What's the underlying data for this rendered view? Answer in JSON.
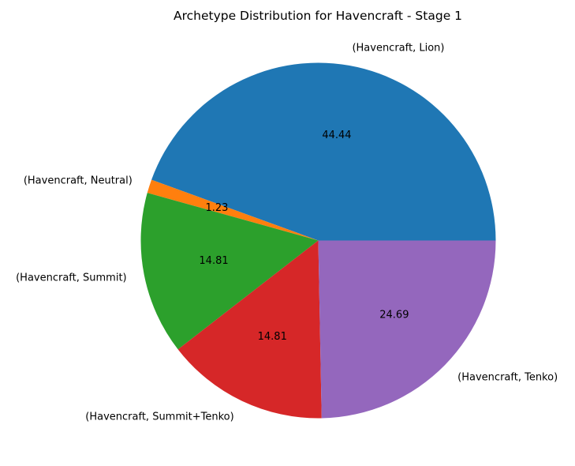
{
  "chart_data": {
    "type": "pie",
    "title": "Archetype Distribution for Havencraft - Stage 1",
    "slices": [
      {
        "label": "(Havencraft, Lion)",
        "value": 44.44,
        "pct_label": "44.44",
        "color": "#1f77b4"
      },
      {
        "label": "(Havencraft, Neutral)",
        "value": 1.23,
        "pct_label": "1.23",
        "color": "#ff7f0e"
      },
      {
        "label": "(Havencraft, Summit)",
        "value": 14.81,
        "pct_label": "14.81",
        "color": "#2ca02c"
      },
      {
        "label": "(Havencraft, Summit+Tenko)",
        "value": 14.81,
        "pct_label": "14.81",
        "color": "#d62728"
      },
      {
        "label": "(Havencraft, Tenko)",
        "value": 24.69,
        "pct_label": "24.69",
        "color": "#9467bd"
      }
    ],
    "start_angle_deg": 0,
    "direction": "counterclockwise"
  }
}
